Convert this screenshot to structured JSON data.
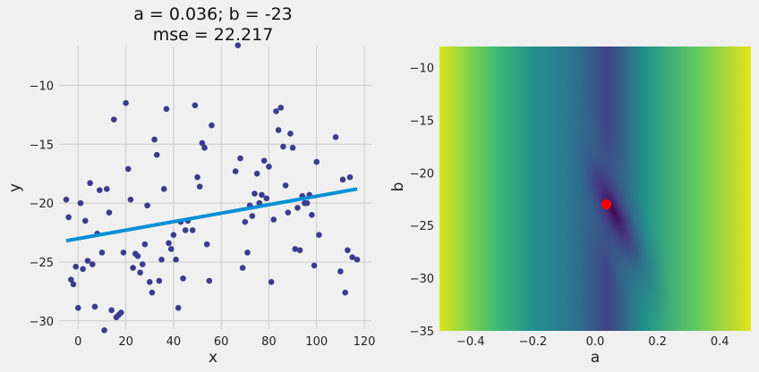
{
  "chart_data": [
    {
      "type": "scatter",
      "title": "a = 0.036; b = -23",
      "subtitle": "mse = 22.217",
      "xlabel": "x",
      "ylabel": "y",
      "xlim": [
        -8,
        123
      ],
      "ylim": [
        -30.7,
        -6.7
      ],
      "xticks": [
        0,
        20,
        40,
        60,
        80,
        100,
        120
      ],
      "yticks": [
        -30,
        -25,
        -20,
        -15,
        -10
      ],
      "grid": true,
      "colors": {
        "points": "#3b3b8f",
        "line": "#008fd5"
      },
      "fit_line": {
        "x": [
          -5,
          117
        ],
        "y": [
          -23.2,
          -18.8
        ]
      },
      "points": {
        "x": [
          -5,
          -4,
          -3,
          -2,
          -1,
          0,
          1,
          2,
          3,
          4,
          5,
          6,
          7,
          8,
          9,
          10,
          11,
          12,
          13,
          14,
          15,
          16,
          17,
          18,
          19,
          20,
          21,
          22,
          23,
          24,
          25,
          26,
          27,
          28,
          29,
          30,
          31,
          32,
          33,
          34,
          35,
          36,
          37,
          38,
          39,
          40,
          41,
          42,
          43,
          44,
          45,
          46,
          48,
          49,
          50,
          51,
          52,
          53,
          54,
          55,
          56,
          66,
          68,
          69,
          70,
          71,
          72,
          73,
          74,
          75,
          76,
          77,
          78,
          79,
          80,
          81,
          82,
          83,
          84,
          85,
          86,
          87,
          88,
          89,
          90,
          91,
          92,
          93,
          94,
          95,
          96,
          97,
          98,
          99,
          100,
          101,
          108,
          110,
          111,
          112,
          113,
          114,
          115,
          117,
          67
        ],
        "y": [
          -19.7,
          -21.2,
          -26.5,
          -26.9,
          -25.4,
          -28.9,
          -20.0,
          -25.6,
          -21.5,
          -24.9,
          -18.3,
          -25.2,
          -28.8,
          -22.6,
          -18.9,
          -24.2,
          -30.8,
          -18.8,
          -20.8,
          -29.1,
          -12.9,
          -29.7,
          -29.5,
          -29.3,
          -24.2,
          -11.5,
          -17.1,
          -19.7,
          -25.5,
          -24.3,
          -24.5,
          -25.9,
          -25.2,
          -23.5,
          -20.2,
          -26.7,
          -27.6,
          -14.6,
          -15.9,
          -26.6,
          -24.8,
          -18.8,
          -12.0,
          -23.4,
          -23.9,
          -22.7,
          -24.8,
          -28.9,
          -21.6,
          -26.4,
          -22.3,
          -21.5,
          -22.3,
          -11.7,
          -17.8,
          -18.6,
          -14.9,
          -15.3,
          -23.5,
          -26.6,
          -13.4,
          -17.3,
          -16.2,
          -25.5,
          -21.6,
          -24.2,
          -20.2,
          -21.1,
          -19.2,
          -17.5,
          -20.0,
          -19.3,
          -16.4,
          -19.6,
          -16.9,
          -26.7,
          -21.4,
          -12.2,
          -13.8,
          -11.9,
          -15.2,
          -18.5,
          -20.8,
          -14.1,
          -15.3,
          -23.9,
          -20.4,
          -24.0,
          -19.4,
          -20.0,
          -20.0,
          -19.3,
          -21.0,
          -25.3,
          -16.5,
          -22.7,
          -14.4,
          -25.8,
          -18.0,
          -27.6,
          -24.0,
          -17.8,
          -24.6,
          -24.8,
          -6.6
        ]
      }
    },
    {
      "type": "heatmap",
      "xlabel": "a",
      "ylabel": "b",
      "xlim": [
        -0.5,
        0.5
      ],
      "ylim": [
        -35,
        -8
      ],
      "xticks": [
        -0.4,
        -0.2,
        0.0,
        0.2,
        0.4
      ],
      "yticks": [
        -35,
        -30,
        -25,
        -20,
        -15,
        -10
      ],
      "colormap": "viridis",
      "marker": {
        "a": 0.036,
        "b": -23,
        "color": "#ff0000"
      }
    }
  ]
}
